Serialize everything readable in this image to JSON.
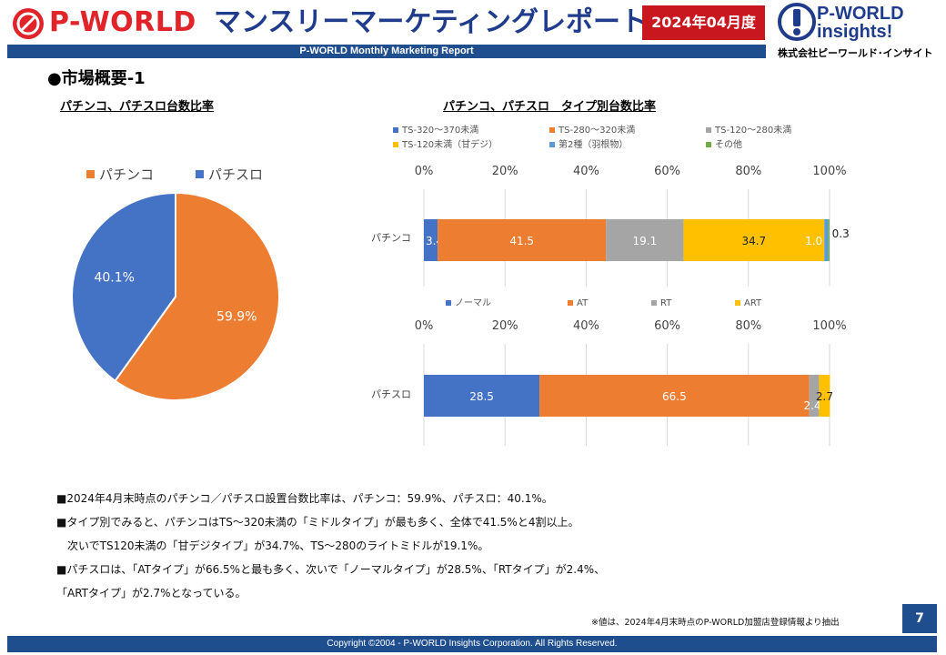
{
  "header": {
    "logo_left_text": "P-WORLD",
    "title": "マンスリーマーケティングレポート",
    "month_badge": "2024年04月度",
    "subtitle_bar": "P-WORLD Monthly Marketing Report",
    "logo_right_line1": "P-WORLD",
    "logo_right_line2": "insights!",
    "logo_right_company": "株式会社ピーワールド･インサイト"
  },
  "section_title": "●市場概要-1",
  "pie_title": "パチンコ、パチスロ台数比率",
  "bar_title": "パチンコ、パチスロ　タイプ別台数比率",
  "colors": {
    "orange": "#ed7d31",
    "blue": "#4472c4",
    "gray": "#a5a5a5",
    "yellow": "#ffc000",
    "lightblue": "#5b9bd5",
    "green": "#70ad47",
    "brand_blue": "#1f4e8f",
    "brand_red": "#c8171e"
  },
  "chart_data": [
    {
      "type": "pie",
      "legend": [
        "パチンコ",
        "パチスロ"
      ],
      "slices": [
        {
          "name": "パチンコ",
          "value": 59.9,
          "label": "59.9%",
          "color": "#ed7d31"
        },
        {
          "name": "パチスロ",
          "value": 40.1,
          "label": "40.1%",
          "color": "#4472c4"
        }
      ]
    },
    {
      "type": "bar",
      "orientation": "horizontal-stacked-100",
      "category": "パチンコ",
      "axis_ticks": [
        "0%",
        "20%",
        "40%",
        "60%",
        "80%",
        "100%"
      ],
      "xlim": [
        0,
        100
      ],
      "series": [
        {
          "name": "TS-320～370未満",
          "value": 3.4,
          "label": "3.4",
          "color": "#4472c4"
        },
        {
          "name": "TS-280～320未満",
          "value": 41.5,
          "label": "41.5",
          "color": "#ed7d31"
        },
        {
          "name": "TS-120～280未満",
          "value": 19.1,
          "label": "19.1",
          "color": "#a5a5a5"
        },
        {
          "name": "TS-120未満（甘デジ）",
          "value": 34.7,
          "label": "34.7",
          "color": "#ffc000"
        },
        {
          "name": "第2種（羽根物）",
          "value": 1.0,
          "label": "1.0",
          "color": "#5b9bd5"
        },
        {
          "name": "その他",
          "value": 0.3,
          "label": "0.3",
          "color": "#70ad47"
        }
      ]
    },
    {
      "type": "bar",
      "orientation": "horizontal-stacked-100",
      "category": "パチスロ",
      "axis_ticks": [
        "0%",
        "20%",
        "40%",
        "60%",
        "80%",
        "100%"
      ],
      "xlim": [
        0,
        100
      ],
      "series": [
        {
          "name": "ノーマル",
          "value": 28.5,
          "label": "28.5",
          "color": "#4472c4"
        },
        {
          "name": "AT",
          "value": 66.5,
          "label": "66.5",
          "color": "#ed7d31"
        },
        {
          "name": "RT",
          "value": 2.4,
          "label": "2.4",
          "color": "#a5a5a5"
        },
        {
          "name": "ART",
          "value": 2.7,
          "label": "2.7",
          "color": "#ffc000"
        }
      ]
    }
  ],
  "notes": [
    "■2024年4月末時点のパチンコ／パチスロ設置台数比率は、パチンコ：59.9%、パチスロ：40.1%。",
    "■タイプ別でみると、パチンコはTS～320未満の「ミドルタイプ」が最も多く、全体で41.5%と4割以上。",
    "　次いでTS120未満の「甘デジタイプ」が34.7%、TS～280のライトミドルが19.1%。",
    "■パチスロは、「ATタイプ」が66.5%と最も多く、次いで「ノーマルタイプ」が28.5%、「RTタイプ」が2.4%、",
    "「ARTタイプ」が2.7%となっている。"
  ],
  "footnote": "※値は、2024年4月末時点のP-WORLD加盟店登録情報より抽出",
  "page_number": "7",
  "footer": "Copyright ©2004 - P-WORLD Insights Corporation. All Rights Reserved."
}
